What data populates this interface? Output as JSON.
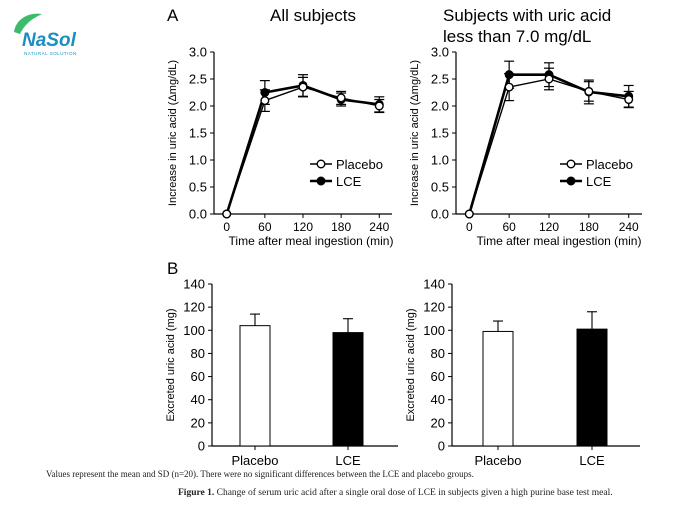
{
  "logo": {
    "text": "NaSol",
    "tagline": "NATURAL SOLUTION",
    "color_primary": "#1a8fc0",
    "color_accent": "#3dbb6a"
  },
  "panel_labels": {
    "a": "A",
    "b": "B"
  },
  "chart_data": [
    {
      "id": "a1",
      "type": "line",
      "title": "All subjects",
      "xlabel": "Time after meal ingestion (min)",
      "ylabel": "Increase in uric acid (Δmg/dL)",
      "x": [
        0,
        60,
        120,
        180,
        240
      ],
      "xticks": [
        "0",
        "60",
        "120",
        "180",
        "240"
      ],
      "xlim": [
        -20,
        260
      ],
      "ylim": [
        0,
        3.0
      ],
      "yticks": [
        "0.0",
        "0.5",
        "1.0",
        "1.5",
        "2.0",
        "2.5",
        "3.0"
      ],
      "legend": "center-right",
      "series": [
        {
          "name": "Placebo",
          "values": [
            0,
            2.1,
            2.35,
            2.15,
            2.0
          ],
          "err": [
            0,
            0.2,
            0.18,
            0.12,
            0.12
          ],
          "marker": "open"
        },
        {
          "name": "LCE",
          "values": [
            0,
            2.25,
            2.38,
            2.12,
            2.03
          ],
          "err": [
            0,
            0.22,
            0.2,
            0.12,
            0.14
          ],
          "marker": "filled"
        }
      ]
    },
    {
      "id": "a2",
      "type": "line",
      "title": "Subjects with uric acid less than 7.0 mg/dL",
      "title_lines": [
        "Subjects with uric acid",
        "less than 7.0 mg/dL"
      ],
      "xlabel": "Time after meal ingestion (min)",
      "ylabel": "Increase in uric acid (Δmg/dL)",
      "x": [
        0,
        60,
        120,
        180,
        240
      ],
      "xticks": [
        "0",
        "60",
        "120",
        "180",
        "240"
      ],
      "xlim": [
        -20,
        260
      ],
      "ylim": [
        0,
        3.0
      ],
      "yticks": [
        "0.0",
        "0.5",
        "1.0",
        "1.5",
        "2.0",
        "2.5",
        "3.0"
      ],
      "legend": "center-right",
      "series": [
        {
          "name": "Placebo",
          "values": [
            0,
            2.35,
            2.5,
            2.27,
            2.12
          ],
          "err": [
            0,
            0.25,
            0.2,
            0.18,
            0.15
          ],
          "marker": "open"
        },
        {
          "name": "LCE",
          "values": [
            0,
            2.58,
            2.58,
            2.26,
            2.18
          ],
          "err": [
            0,
            0.25,
            0.22,
            0.22,
            0.2
          ],
          "marker": "filled"
        }
      ]
    },
    {
      "id": "b1",
      "type": "bar",
      "categories": [
        "Placebo",
        "LCE"
      ],
      "values": [
        104,
        98
      ],
      "err": [
        10,
        12
      ],
      "colors": [
        "#ffffff",
        "#000000"
      ],
      "ylabel": "Excreted uric acid (mg)",
      "ylim": [
        0,
        140
      ],
      "yticks": [
        "0",
        "20",
        "40",
        "60",
        "80",
        "100",
        "120",
        "140"
      ]
    },
    {
      "id": "b2",
      "type": "bar",
      "categories": [
        "Placebo",
        "LCE"
      ],
      "values": [
        99,
        101
      ],
      "err": [
        9,
        15
      ],
      "colors": [
        "#ffffff",
        "#000000"
      ],
      "ylabel": "Excreted uric acid (mg)",
      "ylim": [
        0,
        140
      ],
      "yticks": [
        "0",
        "20",
        "40",
        "60",
        "80",
        "100",
        "120",
        "140"
      ]
    }
  ],
  "notes": "Values represent the mean and SD (n=20). There were no significant differences between the LCE and placebo groups.",
  "caption": {
    "label": "Figure 1.",
    "text": "Change of serum uric acid after a single oral dose of LCE in subjects given a high purine base test meal."
  }
}
